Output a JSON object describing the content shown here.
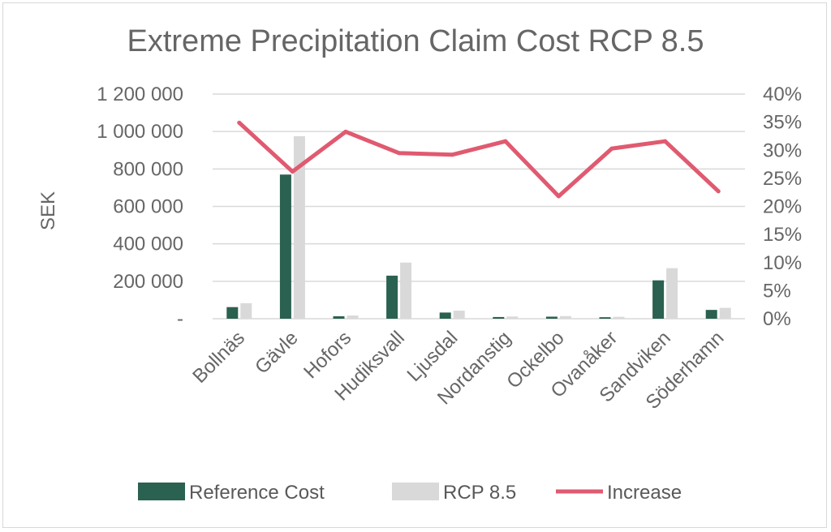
{
  "chart_data": {
    "type": "bar",
    "title": "Extreme Precipitation Claim Cost RCP 8.5",
    "ylabel": "SEK",
    "xlabel": "",
    "categories": [
      "Bollnäs",
      "Gävle",
      "Hofors",
      "Hudiksvall",
      "Ljusdal",
      "Nordanstig",
      "Ockelbo",
      "Ovanåker",
      "Sandviken",
      "Söderhamn"
    ],
    "ylim": [
      0,
      1200000
    ],
    "y2lim": [
      0,
      0.4
    ],
    "y_ticks": [
      "-",
      "200 000",
      "400 000",
      "600 000",
      "800 000",
      "1 000 000",
      "1 200 000"
    ],
    "y2_ticks": [
      "0%",
      "5%",
      "10%",
      "15%",
      "20%",
      "25%",
      "30%",
      "35%",
      "40%"
    ],
    "grid": true,
    "legend_position": "bottom",
    "series": [
      {
        "name": "Reference Cost",
        "type": "bar",
        "axis": "left",
        "color": "#2a6150",
        "values": [
          62000,
          770000,
          13000,
          230000,
          33000,
          9000,
          11000,
          8000,
          205000,
          47000
        ]
      },
      {
        "name": "RCP 8.5",
        "type": "bar",
        "axis": "left",
        "color": "#d9d9d9",
        "values": [
          83000,
          975000,
          17000,
          300000,
          43000,
          12000,
          14000,
          10000,
          270000,
          58000
        ]
      },
      {
        "name": "Increase",
        "type": "line",
        "axis": "right",
        "color": "#e05a70",
        "values": [
          0.349,
          0.262,
          0.333,
          0.295,
          0.292,
          0.316,
          0.218,
          0.303,
          0.316,
          0.227
        ]
      }
    ]
  }
}
